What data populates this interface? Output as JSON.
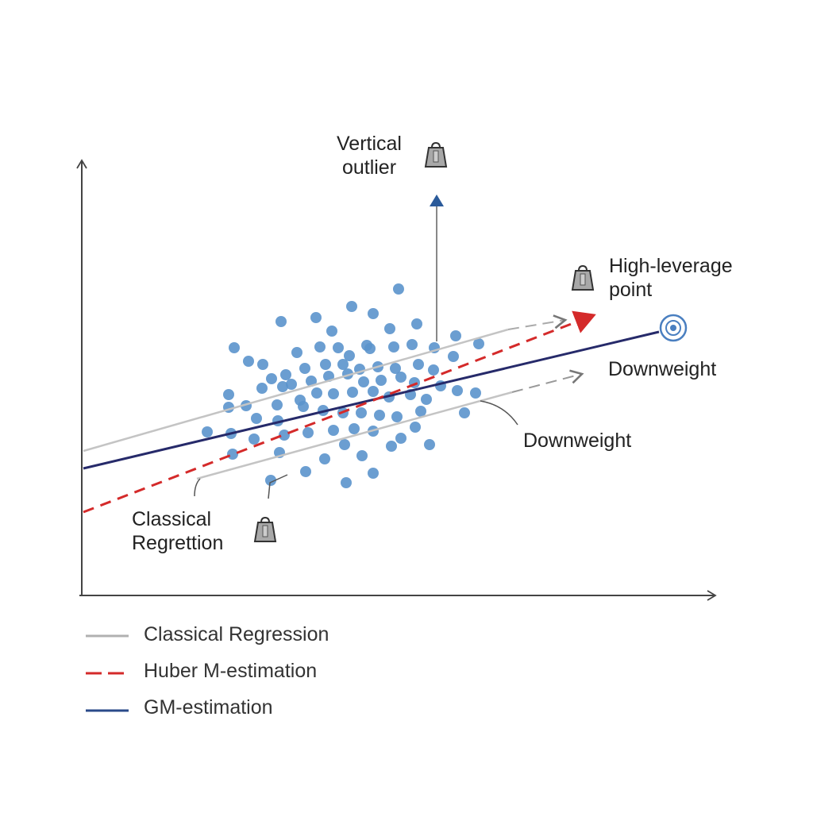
{
  "annotations": {
    "vertical_outlier": [
      "Vertical",
      "outlier"
    ],
    "high_leverage": [
      "High-leverage",
      "point"
    ],
    "downweight_1": "Downweight",
    "downweight_2": "Downweight",
    "classical": [
      "Classical",
      "Regrettion"
    ]
  },
  "legend": [
    {
      "label": "Classical Regression",
      "color": "#b0b0b0",
      "style": "solid"
    },
    {
      "label": "Huber M-estimation",
      "color": "#d42a2a",
      "style": "dashed"
    },
    {
      "label": "GM-estimation",
      "color": "#2a4a8a",
      "style": "solid"
    }
  ],
  "colors": {
    "points": "#5b93cc",
    "classical": "#c4c4c4",
    "huber": "#d42a2a",
    "gm": "#262a6a",
    "axis": "#444444",
    "outlier_arrow": "#2a5a9a",
    "target": "#4a7fc0"
  },
  "icons": [
    "weight-icon",
    "target-icon",
    "arrow-up-icon"
  ]
}
